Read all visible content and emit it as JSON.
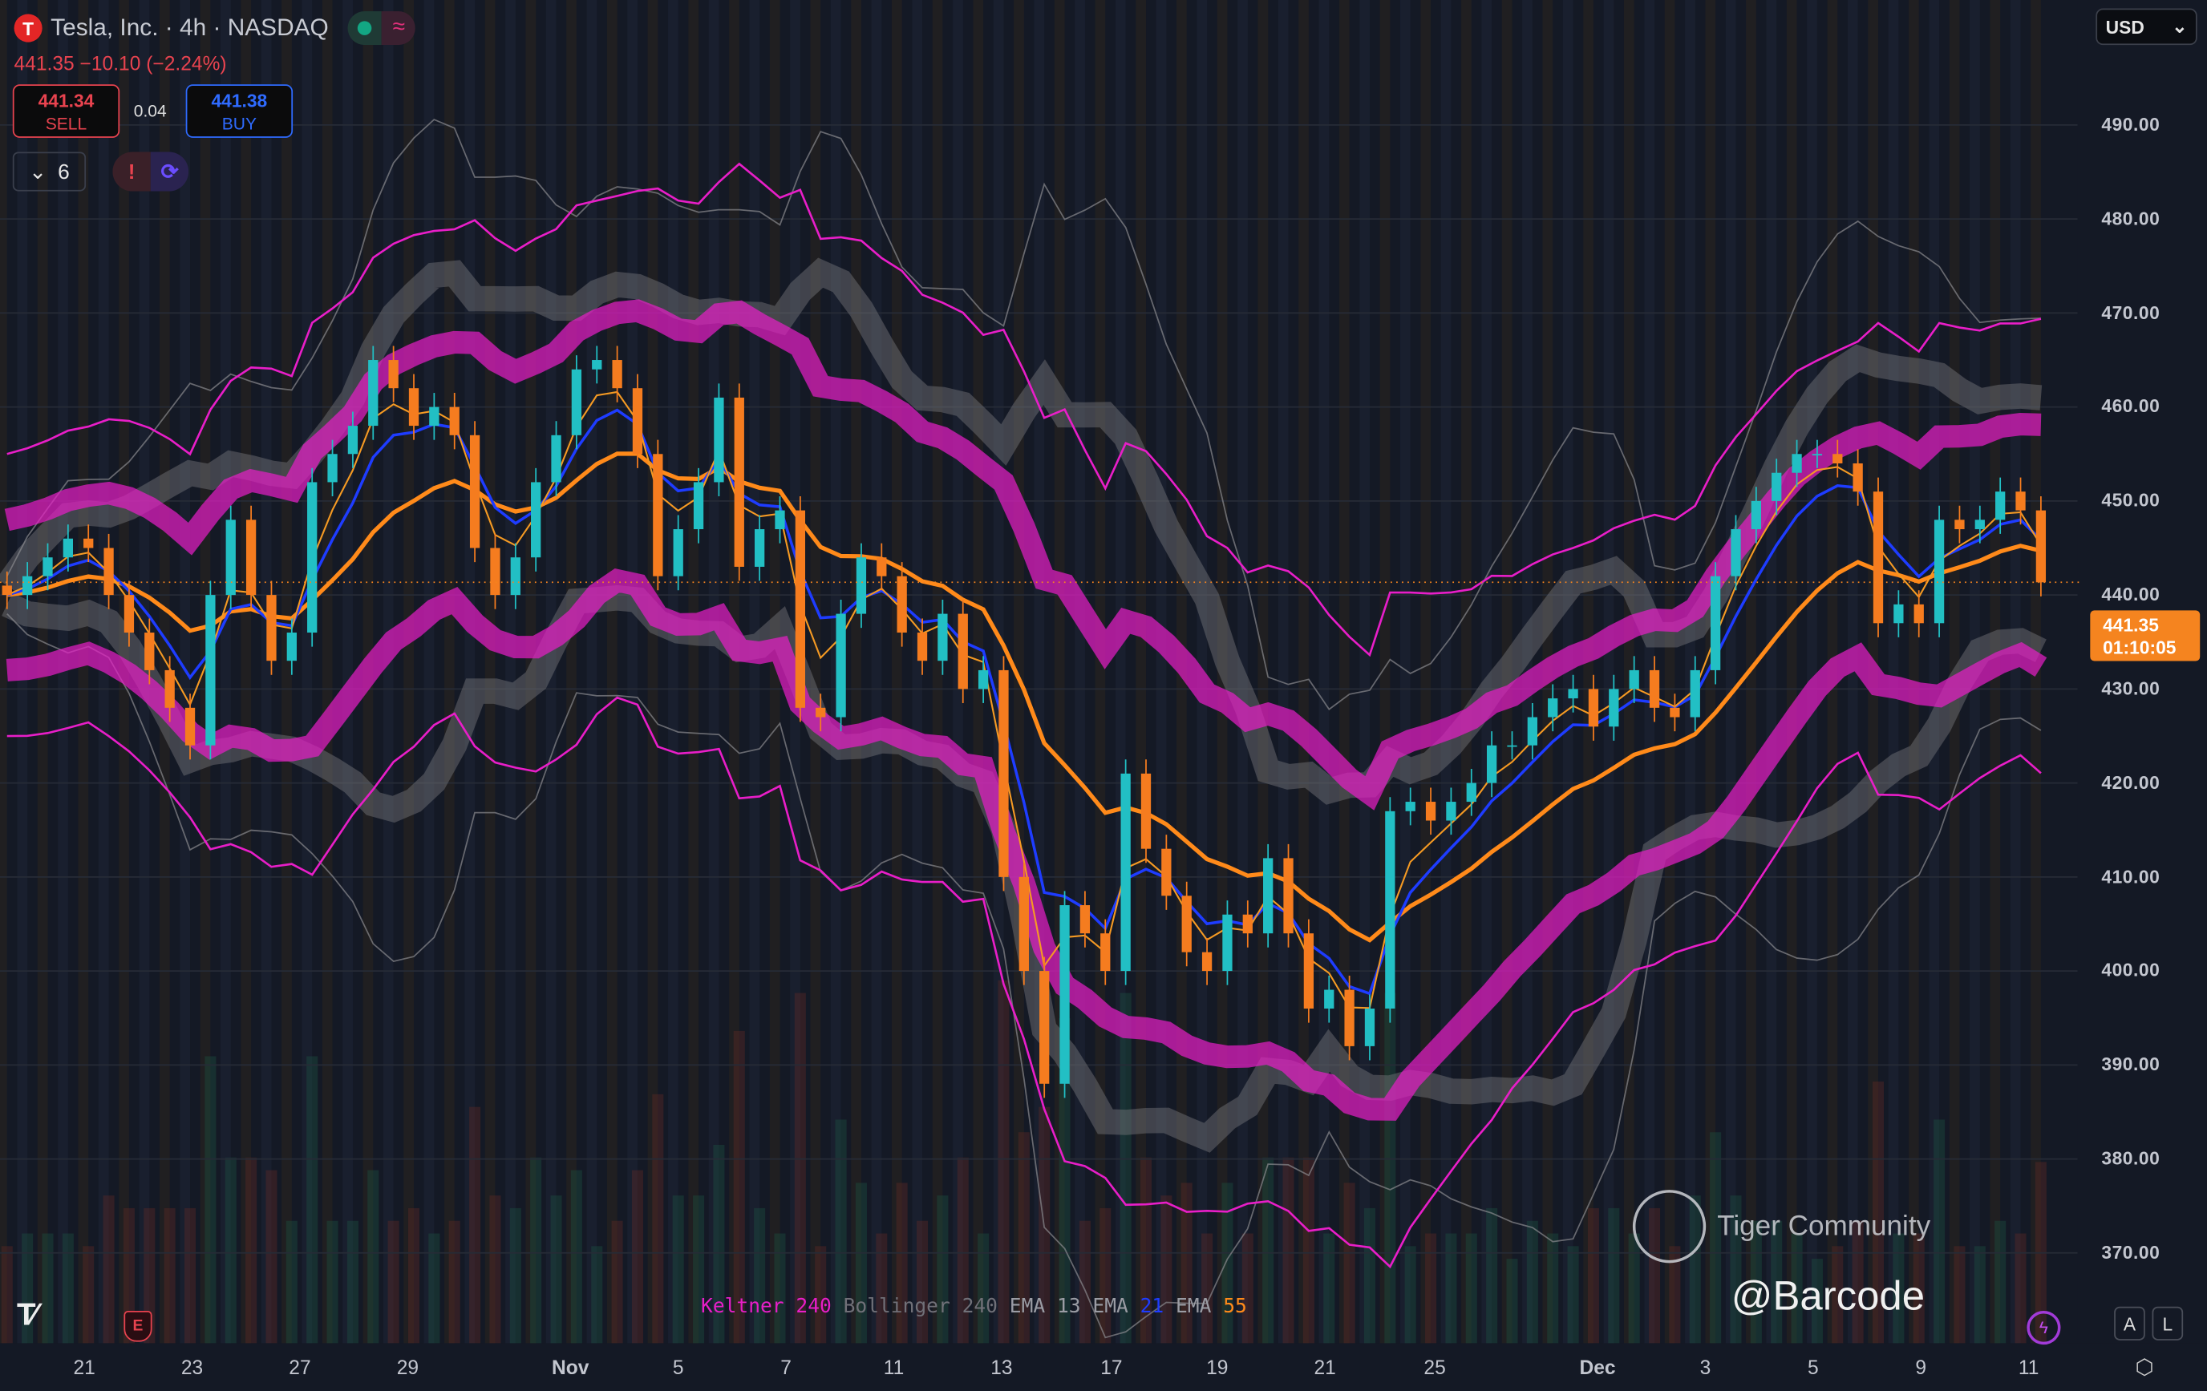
{
  "header": {
    "symbol": "Tesla, Inc. · 4h · NASDAQ",
    "logo_letter": "T",
    "last": "441.35",
    "change": "−10.10 (−2.24%)",
    "market_status_color": "#13a683"
  },
  "trade": {
    "sell_price": "441.34",
    "sell_label": "SELL",
    "spread": "0.04",
    "buy_price": "441.38",
    "buy_label": "BUY"
  },
  "indicators_toggle": {
    "count": "6"
  },
  "currency": "USD",
  "price_tag": {
    "price": "441.35",
    "countdown": "01:10:05"
  },
  "legend": {
    "k": "Keltner",
    "k_len": "240",
    "b": "Bollinger",
    "b_len": "240",
    "e1": "EMA",
    "e1_len": "13",
    "e2": "EMA",
    "e2_len": "21",
    "e3": "EMA",
    "e3_len": "55"
  },
  "watermark": {
    "brand": "Tiger Community",
    "user": "@Barcode"
  },
  "buttons": {
    "auto": "A",
    "log": "L"
  },
  "colors": {
    "up": "#22bfc4",
    "down": "#f57c1f",
    "keltner": "#e81ec8",
    "bollinger": "#8a8a8f",
    "ema13": "#f59a23",
    "ema21": "#1e3cff",
    "ema55": "#ff8a1a"
  },
  "chart_data": {
    "type": "candlestick",
    "title": "Tesla, Inc. · 4h · NASDAQ",
    "ylim": [
      360.4,
      503.3
    ],
    "yticks": [
      "370.00",
      "380.00",
      "390.00",
      "400.00",
      "410.00",
      "420.00",
      "430.00",
      "440.00",
      "450.00",
      "460.00",
      "470.00",
      "480.00",
      "490.00"
    ],
    "ytick_values": [
      370,
      380,
      390,
      400,
      410,
      420,
      430,
      440,
      450,
      460,
      470,
      480,
      490
    ],
    "xticks": [
      {
        "label": "21",
        "i": 3.8
      },
      {
        "label": "23",
        "i": 9.1
      },
      {
        "label": "27",
        "i": 14.4
      },
      {
        "label": "29",
        "i": 19.7
      },
      {
        "label": "Nov",
        "i": 27.7,
        "bold": true
      },
      {
        "label": "5",
        "i": 33.0
      },
      {
        "label": "7",
        "i": 38.3
      },
      {
        "label": "11",
        "i": 43.6
      },
      {
        "label": "13",
        "i": 48.9
      },
      {
        "label": "17",
        "i": 54.3
      },
      {
        "label": "19",
        "i": 59.5
      },
      {
        "label": "21",
        "i": 64.8
      },
      {
        "label": "25",
        "i": 70.2
      },
      {
        "label": "Dec",
        "i": 78.2,
        "bold": true
      },
      {
        "label": "3",
        "i": 83.5
      },
      {
        "label": "5",
        "i": 88.8
      },
      {
        "label": "9",
        "i": 94.1
      },
      {
        "label": "11",
        "i": 99.4
      }
    ],
    "close": [
      440,
      442,
      444,
      446,
      445,
      440,
      436,
      432,
      428,
      424,
      440,
      448,
      440,
      433,
      436,
      452,
      455,
      458,
      465,
      462,
      458,
      460,
      457,
      445,
      440,
      444,
      452,
      457,
      464,
      465,
      462,
      455,
      442,
      447,
      452,
      461,
      443,
      447,
      449,
      428,
      427,
      438,
      444,
      442,
      436,
      433,
      438,
      430,
      432,
      410,
      400,
      388,
      407,
      404,
      400,
      421,
      413,
      408,
      402,
      400,
      406,
      404,
      412,
      404,
      396,
      398,
      392,
      396,
      417,
      418,
      416,
      418,
      420,
      424,
      424,
      427,
      429,
      430,
      426,
      430,
      432,
      428,
      427,
      432,
      442,
      447,
      450,
      453,
      455,
      455,
      454,
      451,
      437,
      439,
      437,
      448,
      447,
      448,
      451,
      449,
      441.35
    ],
    "indicators": [
      "Keltner 240",
      "Bollinger 240",
      "EMA 13",
      "EMA 21",
      "EMA 55"
    ]
  }
}
